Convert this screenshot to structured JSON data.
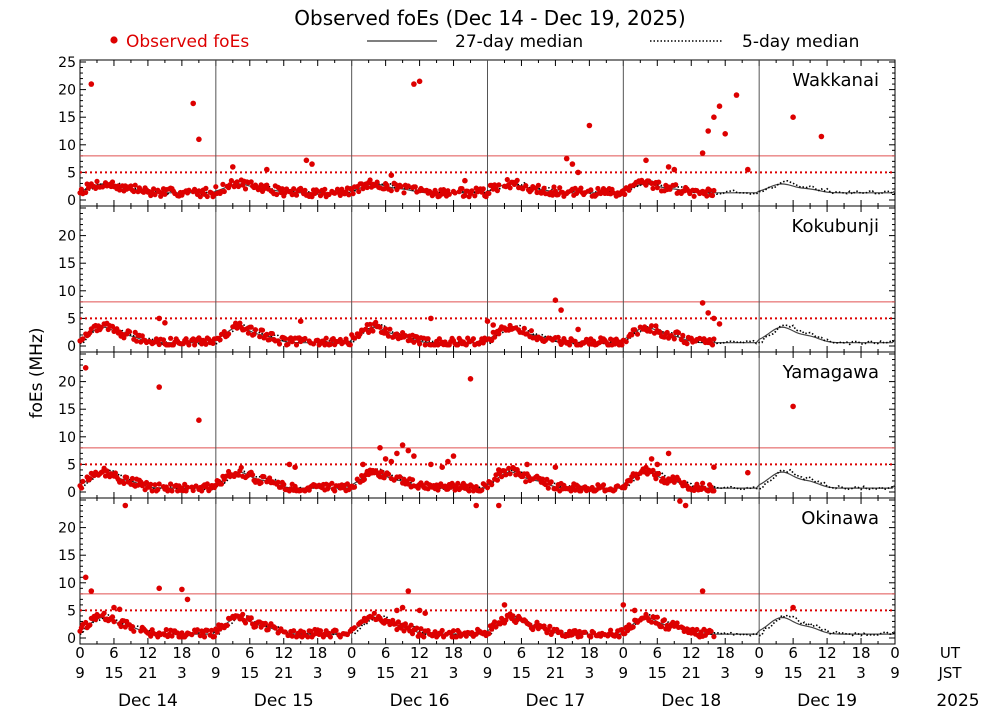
{
  "chart_data": {
    "type": "scatter",
    "title": "Observed foEs (Dec 14 - Dec 19, 2025)",
    "ylabel": "foEs (MHz)",
    "legend": [
      {
        "key": "observed",
        "label": "Observed foEs",
        "color": "#dd0000"
      },
      {
        "key": "median27",
        "label": "27-day median",
        "color": "#555555"
      },
      {
        "key": "median5",
        "label": "5-day median",
        "color": "#000000"
      }
    ],
    "ylim": [
      0,
      25
    ],
    "xlim_hours": [
      0,
      144
    ],
    "y_ticks": [
      0,
      5,
      10,
      15,
      20,
      25
    ],
    "reference_lines": {
      "solid": 8,
      "dotted": 5
    },
    "x_ticks_ut": [
      "0",
      "6",
      "12",
      "18",
      "0",
      "6",
      "12",
      "18",
      "0",
      "6",
      "12",
      "18",
      "0",
      "6",
      "12",
      "18",
      "0",
      "6",
      "12",
      "18",
      "0",
      "6",
      "12",
      "18",
      "0"
    ],
    "x_ticks_jst": [
      "9",
      "15",
      "21",
      "3",
      "9",
      "15",
      "21",
      "3",
      "9",
      "15",
      "21",
      "3",
      "9",
      "15",
      "21",
      "3",
      "9",
      "15",
      "21",
      "3",
      "9",
      "15",
      "21",
      "3",
      "9"
    ],
    "axis_labels": {
      "ut": "UT",
      "jst": "JST",
      "year": "2025"
    },
    "days": [
      "Dec 14",
      "Dec 15",
      "Dec 16",
      "Dec 17",
      "Dec 18",
      "Dec 19"
    ],
    "observed_end_hour": 112,
    "panels": [
      {
        "station": "Wakkanai",
        "spikes": [
          [
            2,
            21
          ],
          [
            20,
            17.5
          ],
          [
            21,
            11
          ],
          [
            27,
            6
          ],
          [
            33,
            5.5
          ],
          [
            40,
            7.2
          ],
          [
            41,
            6.5
          ],
          [
            55,
            4.5
          ],
          [
            59,
            21
          ],
          [
            60,
            21.5
          ],
          [
            68,
            3.5
          ],
          [
            86,
            7.5
          ],
          [
            87,
            6.5
          ],
          [
            88,
            5
          ],
          [
            90,
            13.5
          ],
          [
            100,
            7.2
          ],
          [
            104,
            6
          ],
          [
            105,
            5.5
          ],
          [
            110,
            8.5
          ],
          [
            111,
            12.5
          ],
          [
            112,
            15
          ],
          [
            113,
            17
          ],
          [
            114,
            12
          ],
          [
            116,
            19
          ],
          [
            118,
            5.5
          ],
          [
            126,
            15
          ],
          [
            131,
            11.5
          ]
        ]
      },
      {
        "station": "Kokubunji",
        "spikes": [
          [
            14,
            5
          ],
          [
            15,
            4.2
          ],
          [
            39,
            4.5
          ],
          [
            62,
            5
          ],
          [
            72,
            4.5
          ],
          [
            73,
            3.8
          ],
          [
            84,
            8.3
          ],
          [
            85,
            6.5
          ],
          [
            88,
            3
          ],
          [
            110,
            7.8
          ],
          [
            111,
            6
          ],
          [
            112,
            5
          ],
          [
            113,
            4
          ]
        ]
      },
      {
        "station": "Yamagawa",
        "spikes": [
          [
            1,
            22.5
          ],
          [
            14,
            19
          ],
          [
            21,
            13
          ],
          [
            37,
            5
          ],
          [
            38,
            4.5
          ],
          [
            50,
            5
          ],
          [
            53,
            8
          ],
          [
            54,
            6
          ],
          [
            55,
            5.5
          ],
          [
            56,
            7
          ],
          [
            57,
            8.5
          ],
          [
            58,
            7.5
          ],
          [
            59,
            6.5
          ],
          [
            62,
            5
          ],
          [
            64,
            4.5
          ],
          [
            65,
            5.5
          ],
          [
            66,
            6.5
          ],
          [
            69,
            20.5
          ],
          [
            74,
            4
          ],
          [
            79,
            5
          ],
          [
            84,
            4.5
          ],
          [
            101,
            6
          ],
          [
            102,
            5
          ],
          [
            104,
            7
          ],
          [
            112,
            4.5
          ],
          [
            118,
            3.5
          ],
          [
            126,
            15.5
          ]
        ]
      },
      {
        "station": "Okinawa",
        "spikes": [
          [
            1,
            11
          ],
          [
            2,
            8.5
          ],
          [
            6,
            5.5
          ],
          [
            7,
            5.2
          ],
          [
            8,
            24
          ],
          [
            14,
            9
          ],
          [
            18,
            8.8
          ],
          [
            19,
            7
          ],
          [
            56,
            5
          ],
          [
            57,
            5.5
          ],
          [
            58,
            8.5
          ],
          [
            60,
            5
          ],
          [
            61,
            4.5
          ],
          [
            70,
            24
          ],
          [
            74,
            24
          ],
          [
            75,
            6
          ],
          [
            96,
            6
          ],
          [
            98,
            5
          ],
          [
            106,
            24.8
          ],
          [
            107,
            24
          ],
          [
            110,
            8.5
          ],
          [
            126,
            5.5
          ]
        ]
      }
    ]
  }
}
